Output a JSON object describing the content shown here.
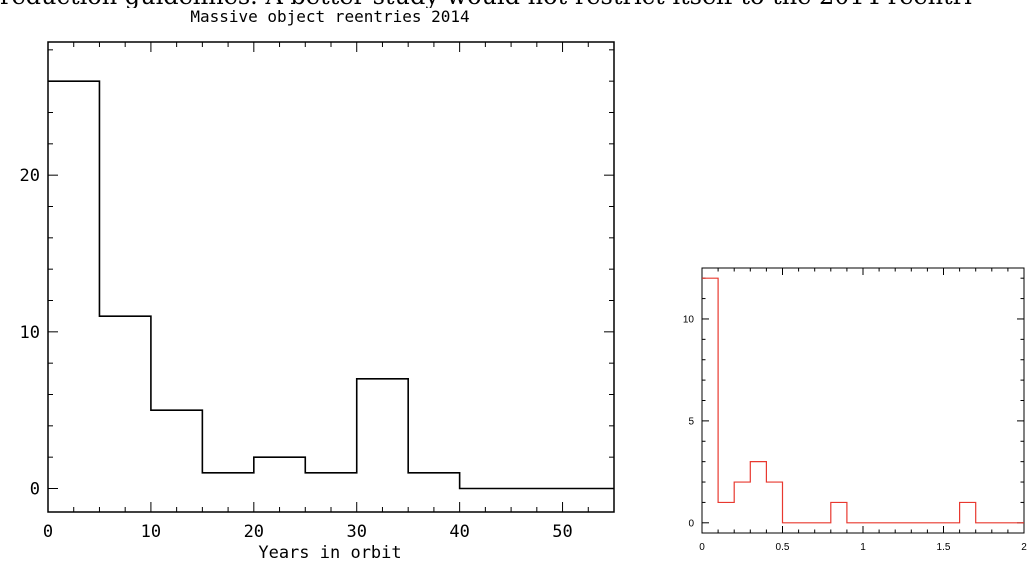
{
  "page_text": {
    "caption_fragment": "reduction guidelines. A better study would not restrict itself to the 2014 reentri"
  },
  "chart_data": [
    {
      "type": "bar",
      "style": "step-histogram",
      "title": "Massive object reentries 2014",
      "xlabel": "Years in orbit",
      "ylabel": "",
      "bin_edges": [
        0,
        5,
        10,
        15,
        20,
        25,
        30,
        35,
        40,
        45,
        50,
        55
      ],
      "values": [
        26,
        11,
        5,
        1,
        2,
        1,
        7,
        1,
        0,
        0,
        0
      ],
      "xlim": [
        0,
        55
      ],
      "ylim": [
        -1.5,
        28.5
      ],
      "xticks": [
        0,
        10,
        20,
        30,
        40,
        50
      ],
      "xtick_labels": [
        "0",
        "10",
        "20",
        "30",
        "40",
        "50"
      ],
      "yticks": [
        0,
        10,
        20
      ],
      "ytick_labels": [
        "0",
        "10",
        "20"
      ],
      "grid": false,
      "line_color": "#000000"
    },
    {
      "type": "bar",
      "style": "step-histogram",
      "title": "",
      "xlabel": "",
      "ylabel": "",
      "bin_edges": [
        0,
        0.1,
        0.2,
        0.3,
        0.4,
        0.5,
        0.6,
        0.7,
        0.8,
        0.9,
        1.0,
        1.1,
        1.2,
        1.3,
        1.4,
        1.5,
        1.6,
        1.7,
        1.8,
        1.9,
        2.0
      ],
      "values": [
        12,
        1,
        2,
        3,
        2,
        0,
        0,
        0,
        1,
        0,
        0,
        0,
        0,
        0,
        0,
        0,
        1,
        0,
        0,
        0
      ],
      "xlim": [
        0,
        2
      ],
      "ylim": [
        -0.5,
        12.5
      ],
      "xticks": [
        0,
        0.5,
        1,
        1.5,
        2
      ],
      "xtick_labels": [
        "0",
        "0.5",
        "1",
        "1.5",
        "2"
      ],
      "yticks": [
        0,
        5,
        10
      ],
      "ytick_labels": [
        "0",
        "5",
        "10"
      ],
      "grid": false,
      "line_color": "#e8382f"
    }
  ]
}
